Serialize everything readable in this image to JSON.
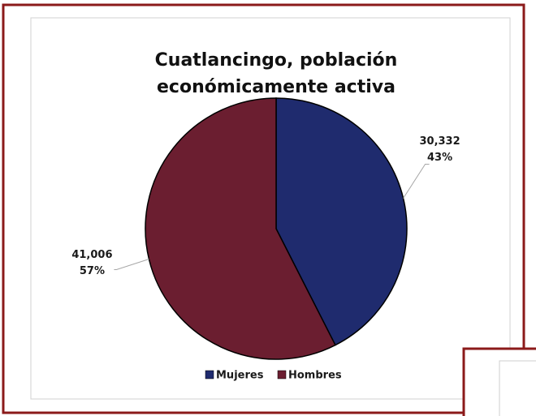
{
  "chart_data": {
    "type": "pie",
    "title": "Cuatlancingo, población económicamente activa",
    "categories": [
      "Mujeres",
      "Hombres"
    ],
    "values": [
      30332,
      41006
    ],
    "value_labels": [
      "30,332",
      "41,006"
    ],
    "percentages": [
      43,
      57
    ],
    "percentage_labels": [
      "43%",
      "57%"
    ],
    "colors": [
      "#1f2b6e",
      "#6b1e30"
    ],
    "legend": "bottom"
  }
}
